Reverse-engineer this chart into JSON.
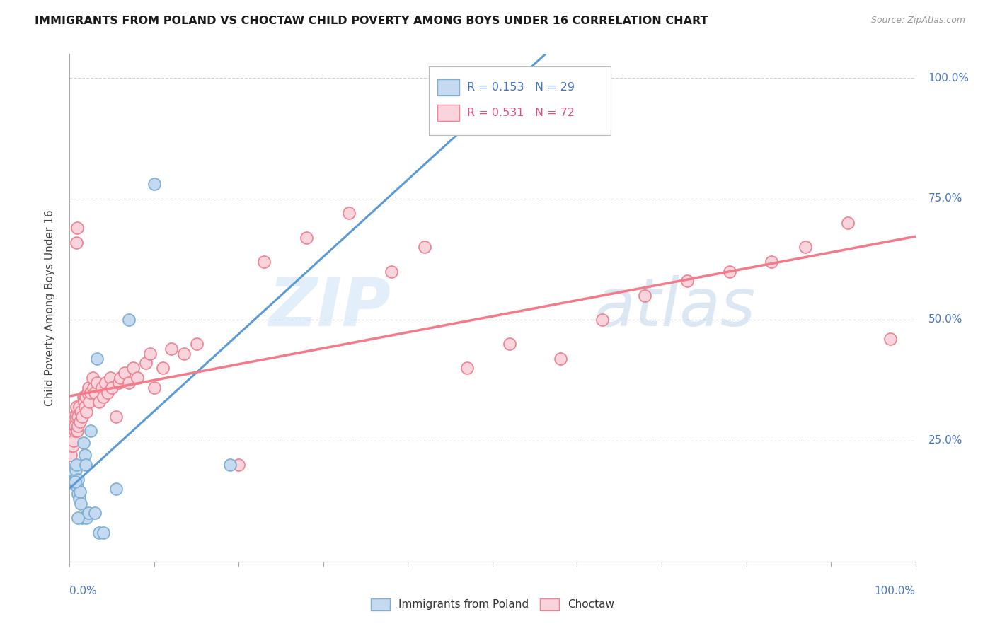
{
  "title": "IMMIGRANTS FROM POLAND VS CHOCTAW CHILD POVERTY AMONG BOYS UNDER 16 CORRELATION CHART",
  "source": "Source: ZipAtlas.com",
  "ylabel": "Child Poverty Among Boys Under 16",
  "legend_blue_R": "R = 0.153",
  "legend_blue_N": "N = 29",
  "legend_pink_R": "R = 0.531",
  "legend_pink_N": "N = 72",
  "legend_label_blue": "Immigrants from Poland",
  "legend_label_pink": "Choctaw",
  "blue_color": "#c5d9f0",
  "blue_edge_color": "#7bafd4",
  "pink_color": "#fad4dc",
  "pink_edge_color": "#f08090",
  "blue_line_color": "#5b9bd5",
  "pink_line_color": "#f47a8a",
  "background_color": "#ffffff",
  "grid_color": "#d0d0d0",
  "right_axis_color": "#4472c4",
  "watermark_color": "#d0e4f5",
  "blue_x": [
    0.4,
    0.5,
    0.6,
    0.7,
    0.8,
    0.8,
    0.9,
    1.0,
    1.0,
    1.1,
    1.2,
    1.3,
    1.5,
    1.6,
    1.8,
    1.9,
    2.0,
    2.2,
    2.5,
    3.0,
    3.2,
    3.5,
    4.0,
    5.5,
    7.0,
    10.0,
    19.0,
    0.6,
    1.0
  ],
  "blue_y": [
    17.5,
    18.5,
    17.0,
    19.0,
    16.0,
    20.0,
    15.5,
    14.0,
    17.0,
    13.0,
    14.5,
    12.0,
    9.0,
    24.5,
    22.0,
    20.0,
    9.0,
    10.0,
    27.0,
    10.0,
    42.0,
    6.0,
    6.0,
    15.0,
    50.0,
    78.0,
    20.0,
    16.5,
    9.0
  ],
  "pink_x": [
    0.1,
    0.2,
    0.3,
    0.3,
    0.4,
    0.4,
    0.5,
    0.5,
    0.6,
    0.6,
    0.7,
    0.8,
    0.9,
    1.0,
    1.0,
    1.1,
    1.2,
    1.3,
    1.5,
    1.6,
    1.7,
    1.8,
    1.9,
    2.0,
    2.1,
    2.2,
    2.3,
    2.5,
    2.7,
    2.8,
    3.0,
    3.2,
    3.5,
    3.8,
    4.0,
    4.2,
    4.5,
    4.8,
    5.0,
    5.5,
    5.8,
    6.0,
    6.5,
    7.0,
    7.5,
    8.0,
    9.0,
    9.5,
    10.0,
    11.0,
    12.0,
    13.5,
    15.0,
    20.0,
    23.0,
    28.0,
    33.0,
    38.0,
    42.0,
    47.0,
    52.0,
    58.0,
    63.0,
    68.0,
    73.0,
    78.0,
    83.0,
    87.0,
    92.0,
    97.0,
    0.8,
    0.9
  ],
  "pink_y": [
    22.0,
    24.0,
    26.0,
    27.0,
    24.0,
    28.0,
    25.0,
    30.0,
    27.0,
    28.0,
    30.0,
    32.0,
    27.0,
    30.0,
    28.0,
    32.0,
    29.0,
    31.0,
    30.0,
    34.0,
    33.0,
    32.0,
    34.0,
    31.0,
    35.0,
    36.0,
    33.0,
    35.0,
    38.0,
    36.0,
    35.0,
    37.0,
    33.0,
    36.0,
    34.0,
    37.0,
    35.0,
    38.0,
    36.0,
    30.0,
    37.0,
    38.0,
    39.0,
    37.0,
    40.0,
    38.0,
    41.0,
    43.0,
    36.0,
    40.0,
    44.0,
    43.0,
    45.0,
    20.0,
    62.0,
    67.0,
    72.0,
    60.0,
    65.0,
    40.0,
    45.0,
    42.0,
    50.0,
    55.0,
    58.0,
    60.0,
    62.0,
    65.0,
    70.0,
    46.0,
    66.0,
    69.0
  ],
  "xlim": [
    0,
    100
  ],
  "ylim": [
    0,
    105
  ],
  "ytick_positions": [
    0,
    25,
    50,
    75,
    100
  ],
  "ytick_labels_right": [
    "",
    "25.0%",
    "50.0%",
    "75.0%",
    "100.0%"
  ]
}
